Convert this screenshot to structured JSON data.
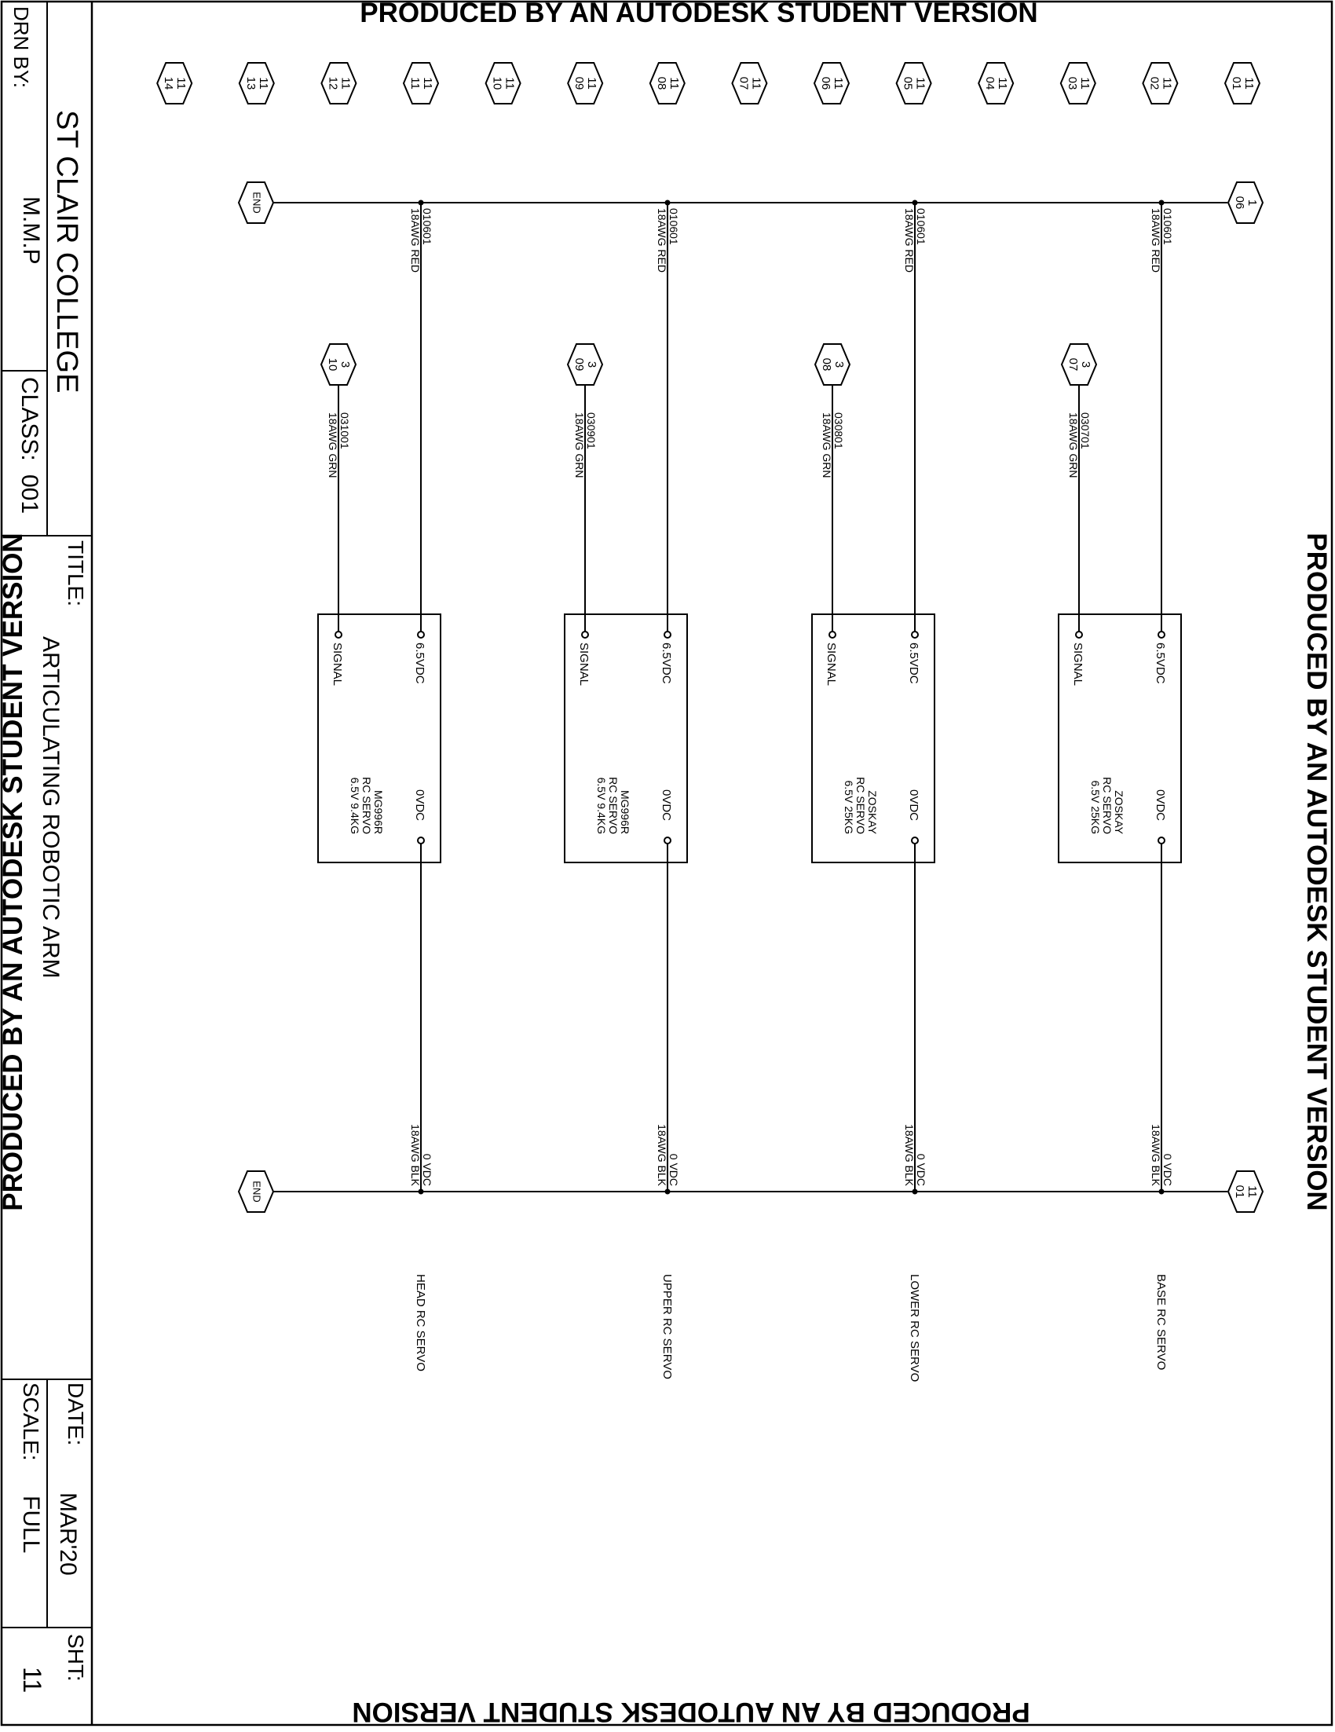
{
  "watermark": "PRODUCED BY AN AUTODESK STUDENT VERSION",
  "title_block": {
    "school": "ST CLAIR COLLEGE",
    "drn_label": "DRN BY:",
    "drn_value": "M.M.P",
    "class_label": "CLASS:",
    "class_value": "001",
    "title_label": "TITLE:",
    "title_value": "ARTICULATING ROBOTIC ARM",
    "date_label": "DATE:",
    "date_value": "MAR'20",
    "scale_label": "SCALE:",
    "scale_value": "FULL",
    "sht_label": "SHT:",
    "sht_value": "11"
  },
  "line_refs": [
    {
      "top": "11",
      "bottom": "01"
    },
    {
      "top": "11",
      "bottom": "02"
    },
    {
      "top": "11",
      "bottom": "03"
    },
    {
      "top": "11",
      "bottom": "04"
    },
    {
      "top": "11",
      "bottom": "05"
    },
    {
      "top": "11",
      "bottom": "06"
    },
    {
      "top": "11",
      "bottom": "07"
    },
    {
      "top": "11",
      "bottom": "08"
    },
    {
      "top": "11",
      "bottom": "09"
    },
    {
      "top": "11",
      "bottom": "10"
    },
    {
      "top": "11",
      "bottom": "11"
    },
    {
      "top": "11",
      "bottom": "12"
    },
    {
      "top": "11",
      "bottom": "13"
    },
    {
      "top": "11",
      "bottom": "14"
    }
  ],
  "power_bus": {
    "source": {
      "top": "1",
      "bottom": "06"
    },
    "end": "END"
  },
  "ground_bus": {
    "source": {
      "top": "11",
      "bottom": "01"
    },
    "end": "END"
  },
  "circuits": [
    {
      "name": "BASE RC SERVO",
      "power_wire": {
        "number": "010601",
        "spec": "18AWG RED"
      },
      "signal_ref": {
        "top": "3",
        "bottom": "07"
      },
      "signal_wire": {
        "number": "030701",
        "spec": "18AWG GRN"
      },
      "ground_wire": {
        "number": "0 VDC",
        "spec": "18AWG BLK"
      },
      "device": {
        "pin_power": "6.5VDC",
        "pin_signal": "SIGNAL",
        "pin_ground": "0VDC",
        "desc": [
          "ZOSKAY",
          "RC SERVO",
          "6.5V 25KG"
        ]
      }
    },
    {
      "name": "LOWER RC SERVO",
      "power_wire": {
        "number": "010601",
        "spec": "18AWG RED"
      },
      "signal_ref": {
        "top": "3",
        "bottom": "08"
      },
      "signal_wire": {
        "number": "030801",
        "spec": "18AWG GRN"
      },
      "ground_wire": {
        "number": "0 VDC",
        "spec": "18AWG BLK"
      },
      "device": {
        "pin_power": "6.5VDC",
        "pin_signal": "SIGNAL",
        "pin_ground": "0VDC",
        "desc": [
          "ZOSKAY",
          "RC SERVO",
          "6.5V 25KG"
        ]
      }
    },
    {
      "name": "UPPER RC SERVO",
      "power_wire": {
        "number": "010601",
        "spec": "18AWG RED"
      },
      "signal_ref": {
        "top": "3",
        "bottom": "09"
      },
      "signal_wire": {
        "number": "030901",
        "spec": "18AWG GRN"
      },
      "ground_wire": {
        "number": "0 VDC",
        "spec": "18AWG BLK"
      },
      "device": {
        "pin_power": "6.5VDC",
        "pin_signal": "SIGNAL",
        "pin_ground": "0VDC",
        "desc": [
          "MG996R",
          "RC SERVO",
          "6.5V 9.4KG"
        ]
      }
    },
    {
      "name": "HEAD RC SERVO",
      "power_wire": {
        "number": "010601",
        "spec": "18AWG RED"
      },
      "signal_ref": {
        "top": "3",
        "bottom": "10"
      },
      "signal_wire": {
        "number": "031001",
        "spec": "18AWG GRN"
      },
      "ground_wire": {
        "number": "0 VDC",
        "spec": "18AWG BLK"
      },
      "device": {
        "pin_power": "6.5VDC",
        "pin_signal": "SIGNAL",
        "pin_ground": "0VDC",
        "desc": [
          "MG996R",
          "RC SERVO",
          "6.5V 9.4KG"
        ]
      }
    }
  ]
}
